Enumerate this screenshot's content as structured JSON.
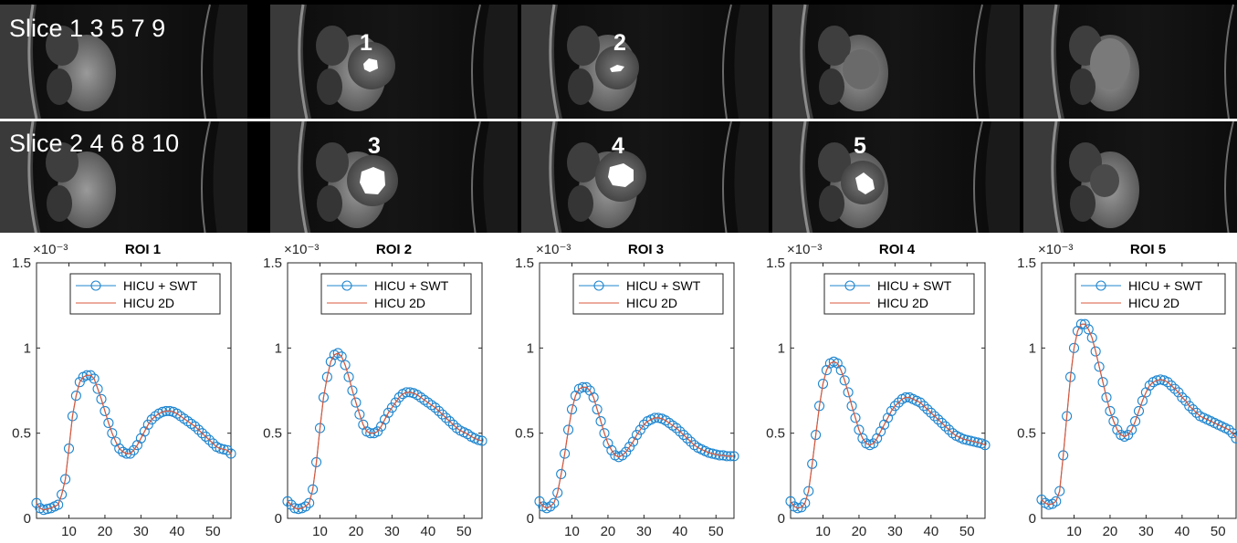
{
  "mri": {
    "rows": [
      {
        "label": "Slice 1 3 5 7 9",
        "markers": [
          "1",
          "2"
        ]
      },
      {
        "label": "Slice 2 4 6 8 10",
        "markers": [
          "3",
          "4",
          "5"
        ]
      }
    ]
  },
  "colors": {
    "swt": "#1f86cf",
    "hicu2d": "#d9583b"
  },
  "chart_data": [
    {
      "type": "line",
      "title": "ROI 1",
      "exponent": "×10⁻³",
      "legend_position": "top-right",
      "xlim": [
        1,
        55
      ],
      "ylim": [
        0,
        1.5
      ],
      "xticks": [
        "10",
        "20",
        "30",
        "40",
        "50"
      ],
      "yticks": [
        "0",
        "0.5",
        "1",
        "1.5"
      ],
      "series": [
        {
          "name": "HICU + SWT",
          "marker": "circle",
          "values": [
            0.09,
            0.06,
            0.05,
            0.055,
            0.06,
            0.07,
            0.08,
            0.14,
            0.23,
            0.41,
            0.6,
            0.72,
            0.8,
            0.83,
            0.84,
            0.84,
            0.82,
            0.76,
            0.7,
            0.63,
            0.56,
            0.5,
            0.45,
            0.41,
            0.39,
            0.38,
            0.38,
            0.4,
            0.43,
            0.47,
            0.51,
            0.55,
            0.58,
            0.6,
            0.615,
            0.625,
            0.63,
            0.63,
            0.625,
            0.615,
            0.6,
            0.585,
            0.57,
            0.555,
            0.54,
            0.52,
            0.5,
            0.48,
            0.46,
            0.44,
            0.42,
            0.41,
            0.405,
            0.4,
            0.38
          ]
        },
        {
          "name": "HICU 2D",
          "marker": "none",
          "values": [
            0.09,
            0.06,
            0.05,
            0.055,
            0.06,
            0.07,
            0.08,
            0.14,
            0.23,
            0.41,
            0.6,
            0.72,
            0.8,
            0.83,
            0.84,
            0.84,
            0.82,
            0.76,
            0.7,
            0.63,
            0.56,
            0.5,
            0.45,
            0.41,
            0.39,
            0.38,
            0.38,
            0.4,
            0.43,
            0.47,
            0.51,
            0.55,
            0.58,
            0.6,
            0.615,
            0.625,
            0.63,
            0.63,
            0.625,
            0.615,
            0.6,
            0.585,
            0.57,
            0.555,
            0.54,
            0.52,
            0.5,
            0.48,
            0.46,
            0.44,
            0.42,
            0.41,
            0.405,
            0.4,
            0.38
          ]
        }
      ]
    },
    {
      "type": "line",
      "title": "ROI 2",
      "exponent": "×10⁻³",
      "legend_position": "top-right",
      "xlim": [
        1,
        55
      ],
      "ylim": [
        0,
        1.5
      ],
      "xticks": [
        "10",
        "20",
        "30",
        "40",
        "50"
      ],
      "yticks": [
        "0",
        "0.5",
        "1",
        "1.5"
      ],
      "series": [
        {
          "name": "HICU + SWT",
          "marker": "circle",
          "values": [
            0.1,
            0.08,
            0.06,
            0.055,
            0.06,
            0.07,
            0.09,
            0.17,
            0.33,
            0.53,
            0.71,
            0.83,
            0.92,
            0.96,
            0.97,
            0.95,
            0.9,
            0.83,
            0.75,
            0.68,
            0.61,
            0.55,
            0.51,
            0.5,
            0.5,
            0.51,
            0.54,
            0.58,
            0.62,
            0.65,
            0.68,
            0.71,
            0.73,
            0.74,
            0.74,
            0.735,
            0.725,
            0.71,
            0.695,
            0.68,
            0.665,
            0.65,
            0.63,
            0.61,
            0.59,
            0.57,
            0.55,
            0.53,
            0.515,
            0.505,
            0.495,
            0.48,
            0.47,
            0.46,
            0.455
          ]
        },
        {
          "name": "HICU 2D",
          "marker": "none",
          "values": [
            0.1,
            0.08,
            0.06,
            0.055,
            0.06,
            0.07,
            0.09,
            0.17,
            0.33,
            0.53,
            0.71,
            0.83,
            0.92,
            0.96,
            0.97,
            0.95,
            0.9,
            0.83,
            0.75,
            0.68,
            0.61,
            0.55,
            0.51,
            0.5,
            0.5,
            0.51,
            0.54,
            0.58,
            0.62,
            0.65,
            0.68,
            0.71,
            0.73,
            0.74,
            0.74,
            0.735,
            0.725,
            0.71,
            0.695,
            0.68,
            0.665,
            0.65,
            0.63,
            0.61,
            0.59,
            0.57,
            0.55,
            0.53,
            0.515,
            0.505,
            0.495,
            0.48,
            0.47,
            0.46,
            0.455
          ]
        }
      ]
    },
    {
      "type": "line",
      "title": "ROI 3",
      "exponent": "×10⁻³",
      "legend_position": "top-right",
      "xlim": [
        1,
        55
      ],
      "ylim": [
        0,
        1.5
      ],
      "xticks": [
        "10",
        "20",
        "30",
        "40",
        "50"
      ],
      "yticks": [
        "0",
        "0.5",
        "1",
        "1.5"
      ],
      "series": [
        {
          "name": "HICU + SWT",
          "marker": "circle",
          "values": [
            0.1,
            0.07,
            0.06,
            0.07,
            0.09,
            0.15,
            0.26,
            0.38,
            0.52,
            0.64,
            0.72,
            0.76,
            0.77,
            0.77,
            0.75,
            0.71,
            0.64,
            0.57,
            0.5,
            0.44,
            0.4,
            0.37,
            0.36,
            0.37,
            0.39,
            0.42,
            0.45,
            0.49,
            0.52,
            0.55,
            0.57,
            0.58,
            0.59,
            0.59,
            0.585,
            0.575,
            0.56,
            0.545,
            0.53,
            0.51,
            0.49,
            0.47,
            0.45,
            0.43,
            0.415,
            0.405,
            0.395,
            0.385,
            0.38,
            0.375,
            0.37,
            0.37,
            0.365,
            0.365,
            0.365
          ]
        },
        {
          "name": "HICU 2D",
          "marker": "none",
          "values": [
            0.1,
            0.07,
            0.06,
            0.07,
            0.09,
            0.15,
            0.26,
            0.38,
            0.52,
            0.64,
            0.72,
            0.76,
            0.77,
            0.77,
            0.75,
            0.71,
            0.64,
            0.57,
            0.5,
            0.44,
            0.4,
            0.37,
            0.36,
            0.37,
            0.39,
            0.42,
            0.45,
            0.49,
            0.52,
            0.55,
            0.57,
            0.58,
            0.59,
            0.59,
            0.585,
            0.575,
            0.56,
            0.545,
            0.53,
            0.51,
            0.49,
            0.47,
            0.45,
            0.43,
            0.415,
            0.405,
            0.395,
            0.385,
            0.38,
            0.375,
            0.37,
            0.37,
            0.365,
            0.365,
            0.365
          ]
        }
      ]
    },
    {
      "type": "line",
      "title": "ROI 4",
      "exponent": "×10⁻³",
      "legend_position": "top-right",
      "xlim": [
        1,
        55
      ],
      "ylim": [
        0,
        1.5
      ],
      "xticks": [
        "10",
        "20",
        "30",
        "40",
        "50"
      ],
      "yticks": [
        "0",
        "0.5",
        "1",
        "1.5"
      ],
      "series": [
        {
          "name": "HICU + SWT",
          "marker": "circle",
          "values": [
            0.1,
            0.07,
            0.06,
            0.065,
            0.09,
            0.16,
            0.32,
            0.49,
            0.66,
            0.79,
            0.87,
            0.91,
            0.92,
            0.91,
            0.87,
            0.81,
            0.74,
            0.66,
            0.59,
            0.52,
            0.47,
            0.44,
            0.43,
            0.44,
            0.47,
            0.51,
            0.55,
            0.59,
            0.63,
            0.66,
            0.68,
            0.7,
            0.71,
            0.71,
            0.7,
            0.69,
            0.68,
            0.66,
            0.64,
            0.62,
            0.6,
            0.58,
            0.56,
            0.54,
            0.52,
            0.5,
            0.485,
            0.475,
            0.465,
            0.46,
            0.455,
            0.45,
            0.445,
            0.44,
            0.43
          ]
        },
        {
          "name": "HICU 2D",
          "marker": "none",
          "values": [
            0.1,
            0.07,
            0.06,
            0.065,
            0.09,
            0.16,
            0.32,
            0.49,
            0.66,
            0.79,
            0.87,
            0.91,
            0.92,
            0.91,
            0.87,
            0.81,
            0.74,
            0.66,
            0.59,
            0.52,
            0.47,
            0.44,
            0.43,
            0.44,
            0.47,
            0.51,
            0.55,
            0.59,
            0.63,
            0.66,
            0.68,
            0.7,
            0.71,
            0.71,
            0.7,
            0.69,
            0.68,
            0.66,
            0.64,
            0.62,
            0.6,
            0.58,
            0.56,
            0.54,
            0.52,
            0.5,
            0.485,
            0.475,
            0.465,
            0.46,
            0.455,
            0.45,
            0.445,
            0.44,
            0.43
          ]
        }
      ]
    },
    {
      "type": "line",
      "title": "ROI 5",
      "exponent": "×10⁻³",
      "legend_position": "top-right",
      "xlim": [
        1,
        55
      ],
      "ylim": [
        0,
        1.5
      ],
      "xticks": [
        "10",
        "20",
        "30",
        "40",
        "50"
      ],
      "yticks": [
        "0",
        "0.5",
        "1",
        "1.5"
      ],
      "series": [
        {
          "name": "HICU + SWT",
          "marker": "circle",
          "values": [
            0.11,
            0.09,
            0.08,
            0.085,
            0.1,
            0.16,
            0.37,
            0.6,
            0.83,
            1.0,
            1.1,
            1.14,
            1.14,
            1.11,
            1.06,
            0.98,
            0.89,
            0.8,
            0.71,
            0.63,
            0.57,
            0.52,
            0.49,
            0.48,
            0.49,
            0.52,
            0.57,
            0.63,
            0.69,
            0.74,
            0.78,
            0.8,
            0.81,
            0.815,
            0.81,
            0.8,
            0.78,
            0.76,
            0.74,
            0.71,
            0.69,
            0.66,
            0.64,
            0.62,
            0.6,
            0.59,
            0.58,
            0.57,
            0.56,
            0.55,
            0.54,
            0.53,
            0.52,
            0.5,
            0.47
          ]
        },
        {
          "name": "HICU 2D",
          "marker": "none",
          "values": [
            0.11,
            0.09,
            0.08,
            0.085,
            0.1,
            0.16,
            0.37,
            0.6,
            0.83,
            1.0,
            1.1,
            1.14,
            1.14,
            1.11,
            1.06,
            0.98,
            0.89,
            0.8,
            0.71,
            0.63,
            0.57,
            0.52,
            0.49,
            0.48,
            0.49,
            0.52,
            0.57,
            0.63,
            0.69,
            0.74,
            0.78,
            0.8,
            0.81,
            0.815,
            0.81,
            0.8,
            0.78,
            0.76,
            0.74,
            0.71,
            0.69,
            0.66,
            0.64,
            0.62,
            0.6,
            0.59,
            0.58,
            0.57,
            0.56,
            0.55,
            0.54,
            0.53,
            0.52,
            0.5,
            0.47
          ]
        }
      ]
    }
  ]
}
